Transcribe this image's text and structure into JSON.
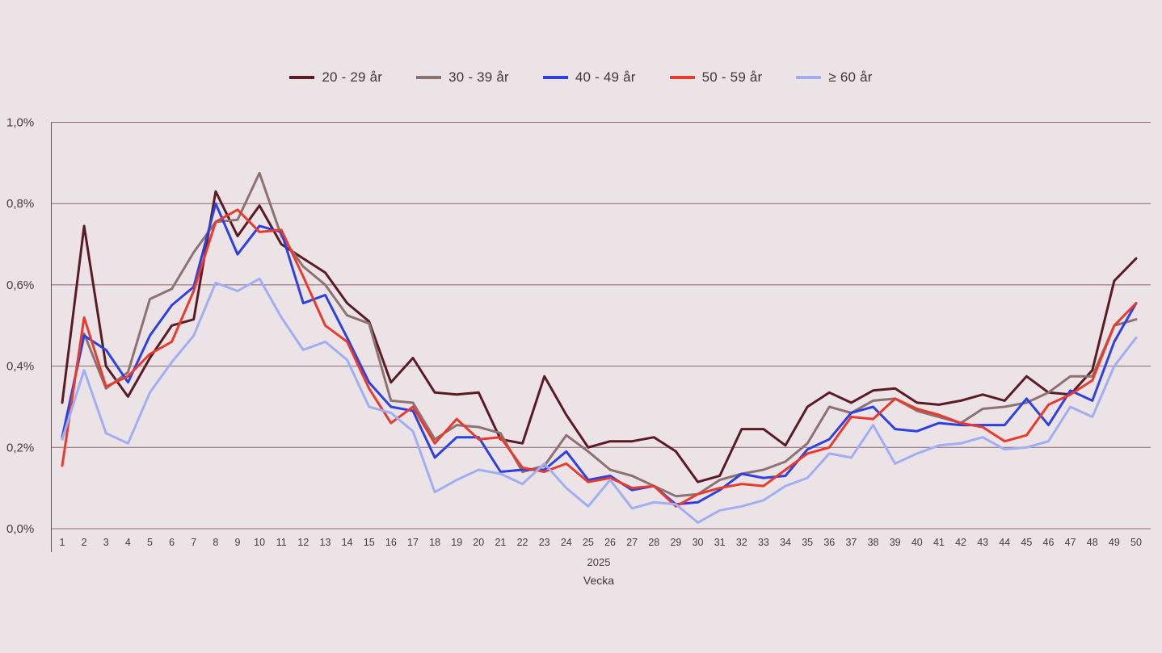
{
  "colors": {
    "background": "#ece3e6",
    "gridline": "#8a6670",
    "axis": "#6b4c56",
    "tick_text": "#4c3a42"
  },
  "chart_data": {
    "type": "line",
    "title": "",
    "xlabel": "Vecka",
    "x_group_label": "2025",
    "ylabel": "",
    "ylim": [
      0.0,
      1.0
    ],
    "unit": "%",
    "grid": true,
    "legend_position": "top",
    "x": [
      1,
      2,
      3,
      4,
      5,
      6,
      7,
      8,
      9,
      10,
      11,
      12,
      13,
      14,
      15,
      16,
      17,
      18,
      19,
      20,
      21,
      22,
      23,
      24,
      25,
      26,
      27,
      28,
      29,
      30,
      31,
      32,
      33,
      34,
      35,
      36,
      37,
      38,
      39,
      40,
      41,
      42,
      43,
      44,
      45,
      46,
      47,
      48,
      49,
      50
    ],
    "y_tick_values": [
      0.0,
      0.2,
      0.4,
      0.6,
      0.8,
      1.0
    ],
    "y_tick_labels": [
      "0,0%",
      "0,2%",
      "0,4%",
      "0,6%",
      "0,8%",
      "1,0%"
    ],
    "series": [
      {
        "id": "20-29",
        "name": "20 - 29 år",
        "color": "#5a1b25",
        "values": [
          0.31,
          0.745,
          0.4,
          0.325,
          0.42,
          0.5,
          0.515,
          0.83,
          0.72,
          0.795,
          0.7,
          0.665,
          0.63,
          0.555,
          0.51,
          0.36,
          0.42,
          0.335,
          0.33,
          0.335,
          0.22,
          0.21,
          0.375,
          0.28,
          0.2,
          0.215,
          0.215,
          0.225,
          0.19,
          0.115,
          0.13,
          0.245,
          0.245,
          0.205,
          0.3,
          0.335,
          0.31,
          0.34,
          0.345,
          0.31,
          0.305,
          0.315,
          0.33,
          0.315,
          0.375,
          0.335,
          0.33,
          0.39,
          0.61,
          0.665
        ]
      },
      {
        "id": "30-39",
        "name": "30 - 39 år",
        "color": "#8c7271",
        "values": [
          0.22,
          0.48,
          0.345,
          0.385,
          0.565,
          0.59,
          0.68,
          0.755,
          0.76,
          0.875,
          0.72,
          0.645,
          0.6,
          0.525,
          0.505,
          0.315,
          0.31,
          0.22,
          0.255,
          0.25,
          0.235,
          0.14,
          0.155,
          0.23,
          0.19,
          0.145,
          0.13,
          0.105,
          0.08,
          0.085,
          0.12,
          0.135,
          0.145,
          0.165,
          0.21,
          0.3,
          0.285,
          0.315,
          0.32,
          0.29,
          0.275,
          0.26,
          0.295,
          0.3,
          0.31,
          0.335,
          0.375,
          0.375,
          0.5,
          0.515
        ]
      },
      {
        "id": "40-49",
        "name": "40 - 49 år",
        "color": "#2d41e0",
        "values": [
          0.225,
          0.475,
          0.44,
          0.36,
          0.475,
          0.55,
          0.595,
          0.8,
          0.675,
          0.745,
          0.73,
          0.555,
          0.575,
          0.47,
          0.36,
          0.3,
          0.29,
          0.175,
          0.225,
          0.225,
          0.14,
          0.145,
          0.145,
          0.19,
          0.12,
          0.13,
          0.095,
          0.105,
          0.06,
          0.065,
          0.095,
          0.135,
          0.125,
          0.13,
          0.195,
          0.22,
          0.285,
          0.3,
          0.245,
          0.24,
          0.26,
          0.255,
          0.255,
          0.255,
          0.32,
          0.255,
          0.34,
          0.315,
          0.46,
          0.555
        ]
      },
      {
        "id": "50-59",
        "name": "50 - 59 år",
        "color": "#e73b2e",
        "values": [
          0.155,
          0.52,
          0.35,
          0.375,
          0.43,
          0.46,
          0.585,
          0.755,
          0.785,
          0.73,
          0.735,
          0.62,
          0.5,
          0.46,
          0.345,
          0.26,
          0.3,
          0.21,
          0.27,
          0.22,
          0.225,
          0.15,
          0.14,
          0.16,
          0.115,
          0.125,
          0.1,
          0.105,
          0.055,
          0.085,
          0.1,
          0.11,
          0.105,
          0.145,
          0.185,
          0.2,
          0.275,
          0.27,
          0.32,
          0.295,
          0.28,
          0.26,
          0.25,
          0.215,
          0.23,
          0.305,
          0.33,
          0.365,
          0.5,
          0.555
        ]
      },
      {
        "id": "60-plus",
        "name": "≥ 60 år",
        "color": "#a0aef2",
        "values": [
          0.22,
          0.39,
          0.235,
          0.21,
          0.335,
          0.41,
          0.475,
          0.605,
          0.585,
          0.615,
          0.52,
          0.44,
          0.46,
          0.415,
          0.3,
          0.285,
          0.24,
          0.09,
          0.12,
          0.145,
          0.135,
          0.11,
          0.16,
          0.1,
          0.055,
          0.12,
          0.05,
          0.065,
          0.06,
          0.015,
          0.045,
          0.055,
          0.07,
          0.105,
          0.125,
          0.185,
          0.175,
          0.255,
          0.16,
          0.185,
          0.205,
          0.21,
          0.225,
          0.195,
          0.2,
          0.215,
          0.3,
          0.275,
          0.4,
          0.47
        ]
      }
    ]
  }
}
